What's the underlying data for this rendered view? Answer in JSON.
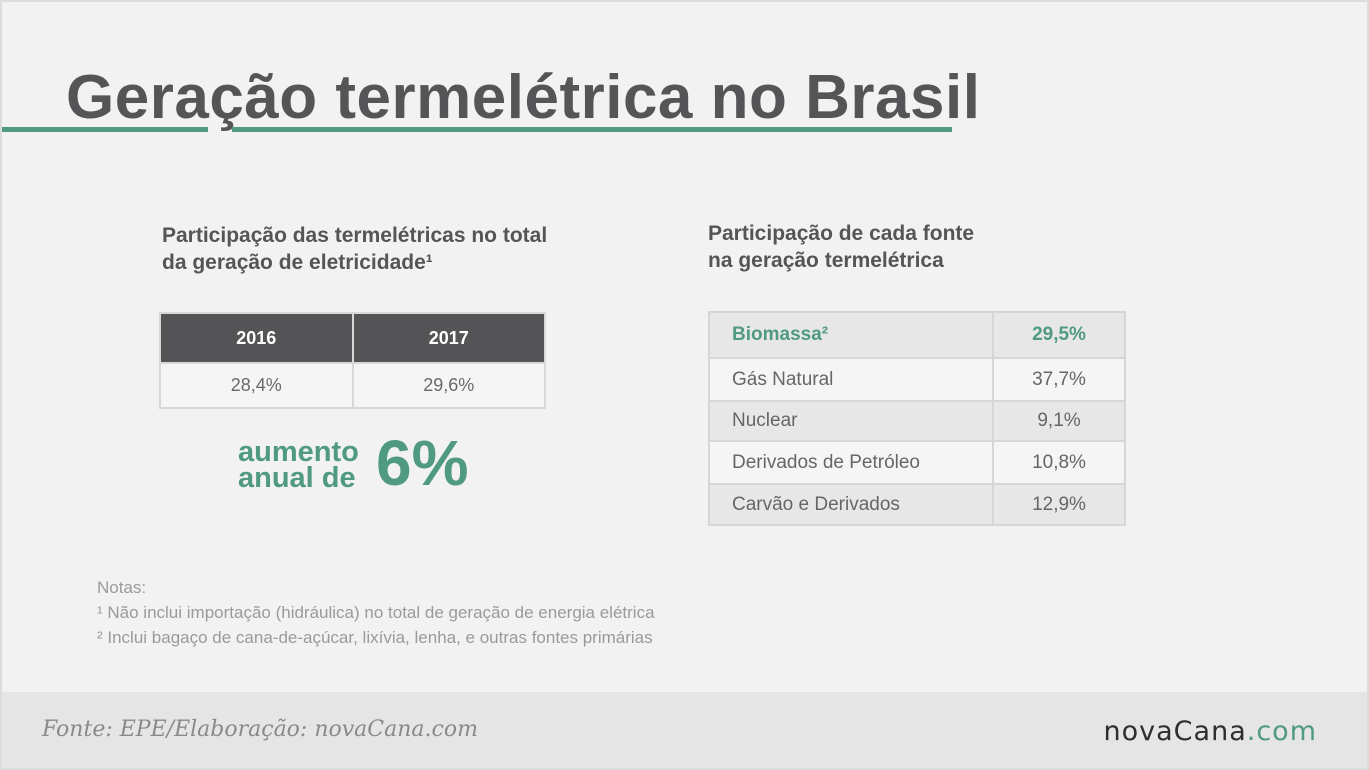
{
  "title": "Geração termelétrica no Brasil",
  "colors": {
    "accent": "#4f9a80",
    "header_dark": "#545456",
    "text": "#555557"
  },
  "left": {
    "subtitle_line1": "Participação das termelétricas no total",
    "subtitle_line2": "da geração de eletricidade¹",
    "headers": [
      "2016",
      "2017"
    ],
    "values": [
      "28,4%",
      "29,6%"
    ],
    "increase_line1": "aumento",
    "increase_line2": "anual de",
    "increase_value": "6%"
  },
  "right": {
    "subtitle_line1": "Participação de cada fonte",
    "subtitle_line2": "na geração termelétrica",
    "rows": [
      {
        "name": "Biomassa²",
        "value": "29,5%"
      },
      {
        "name": "Gás Natural",
        "value": "37,7%"
      },
      {
        "name": "Nuclear",
        "value": "9,1%"
      },
      {
        "name": "Derivados de Petróleo",
        "value": "10,8%"
      },
      {
        "name": "Carvão e Derivados",
        "value": "12,9%"
      }
    ]
  },
  "chart_data": [
    {
      "type": "table",
      "title": "Participação das termelétricas no total da geração de eletricidade¹",
      "columns": [
        "2016",
        "2017"
      ],
      "rows": [
        [
          "28,4%",
          "29,6%"
        ]
      ],
      "values": [
        28.4,
        29.6
      ],
      "annotation": "aumento anual de 6%"
    },
    {
      "type": "table",
      "title": "Participação de cada fonte na geração termelétrica",
      "categories": [
        "Biomassa²",
        "Gás Natural",
        "Nuclear",
        "Derivados de Petróleo",
        "Carvão e Derivados"
      ],
      "values": [
        29.5,
        37.7,
        9.1,
        10.8,
        12.9
      ]
    }
  ],
  "notes": {
    "label": "Notas:",
    "note1": "¹ Não inclui importação (hidráulica) no total de geração de energia elétrica",
    "note2": "² Inclui bagaço de cana-de-açúcar, lixívia, lenha, e outras fontes primárias"
  },
  "footer": {
    "source": "Fonte: EPE/Elaboração: novaCana.com",
    "logo_main": "novaCana",
    "logo_suffix": ".com"
  }
}
